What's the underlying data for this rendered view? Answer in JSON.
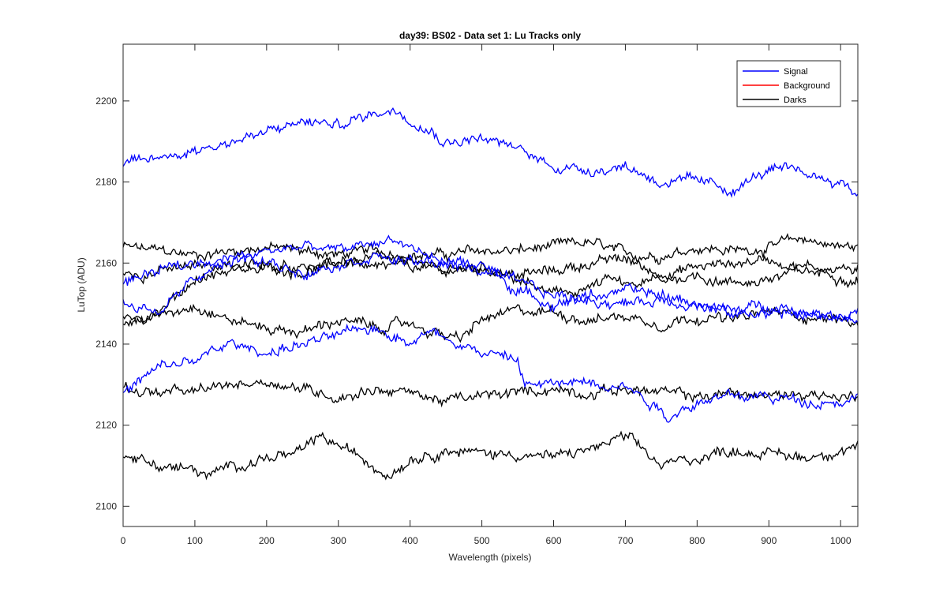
{
  "chart_data": {
    "type": "line",
    "title": "day39: BS02 - Data set 1: Lu Tracks only",
    "xlabel": "Wavelength (pixels)",
    "ylabel": "LuTop (ADU)",
    "xlim": [
      0,
      1024
    ],
    "ylim": [
      2095,
      2214
    ],
    "xticks": [
      0,
      100,
      200,
      300,
      400,
      500,
      600,
      700,
      800,
      900,
      1000
    ],
    "yticks": [
      2100,
      2120,
      2140,
      2160,
      2180,
      2200
    ],
    "grid": false,
    "legend_position": "top-right",
    "legend": [
      {
        "label": "Signal",
        "color": "#0000ff"
      },
      {
        "label": "Background",
        "color": "#ff0000"
      },
      {
        "label": "Darks",
        "color": "#000000"
      }
    ],
    "series": [
      {
        "group": "Signal",
        "color": "#0000ff",
        "x": [
          0,
          50,
          100,
          150,
          200,
          250,
          300,
          350,
          380,
          420,
          450,
          500,
          550,
          600,
          650,
          700,
          750,
          800,
          850,
          900,
          950,
          1000,
          1024
        ],
        "values": [
          2184,
          2186,
          2188,
          2190,
          2192,
          2195,
          2194,
          2197,
          2198,
          2194,
          2190,
          2191,
          2188,
          2184,
          2183,
          2184,
          2180,
          2180,
          2178,
          2183,
          2182,
          2180,
          2177
        ]
      },
      {
        "group": "Signal",
        "color": "#0000ff",
        "x": [
          0,
          50,
          100,
          150,
          200,
          250,
          300,
          350,
          380,
          420,
          450,
          500,
          550,
          600,
          650,
          700,
          750,
          800,
          850,
          900,
          950,
          1000,
          1024
        ],
        "values": [
          2150,
          2148,
          2156,
          2160,
          2163,
          2164,
          2163,
          2165,
          2166,
          2162,
          2160,
          2158,
          2155,
          2152,
          2151,
          2150,
          2151,
          2150,
          2147,
          2148,
          2147,
          2147,
          2146
        ]
      },
      {
        "group": "Signal",
        "color": "#0000ff",
        "x": [
          0,
          50,
          100,
          150,
          200,
          250,
          300,
          350,
          400,
          450,
          500,
          550,
          600,
          650,
          700,
          750,
          800,
          850,
          900,
          950,
          1000,
          1024
        ],
        "values": [
          2155,
          2158,
          2160,
          2162,
          2160,
          2158,
          2160,
          2162,
          2160,
          2160,
          2160,
          2153,
          2150,
          2152,
          2153,
          2152,
          2150,
          2148,
          2150,
          2148,
          2147,
          2148
        ]
      },
      {
        "group": "Signal",
        "color": "#0000ff",
        "x": [
          0,
          50,
          100,
          150,
          200,
          250,
          300,
          350,
          400,
          430,
          450,
          500,
          550,
          560,
          600,
          650,
          700,
          750,
          760,
          800,
          850,
          900,
          950,
          1000,
          1024
        ],
        "values": [
          2128,
          2134,
          2136,
          2140,
          2138,
          2140,
          2142,
          2144,
          2141,
          2143,
          2142,
          2138,
          2136,
          2130,
          2130,
          2131,
          2130,
          2124,
          2122,
          2126,
          2127,
          2127,
          2126,
          2126,
          2127
        ]
      },
      {
        "group": "Darks",
        "color": "#000000",
        "x": [
          0,
          50,
          100,
          150,
          200,
          250,
          300,
          350,
          400,
          450,
          500,
          550,
          600,
          650,
          700,
          750,
          800,
          850,
          900,
          950,
          1000,
          1024
        ],
        "values": [
          2164,
          2163,
          2162,
          2163,
          2164,
          2163,
          2162,
          2163,
          2162,
          2162,
          2163,
          2163,
          2164,
          2165,
          2162,
          2162,
          2164,
          2163,
          2164,
          2166,
          2164,
          2164
        ]
      },
      {
        "group": "Darks",
        "color": "#000000",
        "x": [
          0,
          50,
          100,
          150,
          200,
          250,
          300,
          350,
          400,
          450,
          500,
          550,
          600,
          650,
          700,
          750,
          800,
          850,
          900,
          950,
          1000,
          1024
        ],
        "values": [
          2157,
          2158,
          2159,
          2160,
          2159,
          2158,
          2160,
          2161,
          2159,
          2158,
          2159,
          2157,
          2158,
          2160,
          2161,
          2157,
          2159,
          2160,
          2161,
          2159,
          2159,
          2158
        ]
      },
      {
        "group": "Darks",
        "color": "#000000",
        "x": [
          0,
          50,
          100,
          150,
          200,
          250,
          300,
          350,
          400,
          450,
          500,
          550,
          600,
          650,
          680,
          700,
          750,
          800,
          850,
          900,
          950,
          1000,
          1024
        ],
        "values": [
          2146,
          2148,
          2156,
          2158,
          2159,
          2158,
          2160,
          2160,
          2159,
          2158,
          2158,
          2156,
          2152,
          2154,
          2156,
          2154,
          2156,
          2157,
          2155,
          2156,
          2158,
          2157,
          2156
        ]
      },
      {
        "group": "Darks",
        "color": "#000000",
        "x": [
          0,
          50,
          100,
          150,
          200,
          250,
          300,
          350,
          400,
          450,
          470,
          500,
          550,
          600,
          650,
          700,
          750,
          800,
          850,
          900,
          950,
          1000,
          1024
        ],
        "values": [
          2145,
          2147,
          2150,
          2146,
          2144,
          2143,
          2146,
          2144,
          2145,
          2142,
          2141,
          2146,
          2148,
          2148,
          2146,
          2147,
          2145,
          2147,
          2146,
          2148,
          2147,
          2146,
          2145
        ]
      },
      {
        "group": "Darks",
        "color": "#000000",
        "x": [
          0,
          50,
          100,
          150,
          200,
          250,
          300,
          350,
          400,
          450,
          500,
          550,
          600,
          650,
          700,
          750,
          800,
          850,
          900,
          950,
          1000,
          1024
        ],
        "values": [
          2129,
          2128,
          2128,
          2130,
          2131,
          2129,
          2127,
          2129,
          2128,
          2126,
          2127,
          2128,
          2129,
          2128,
          2129,
          2128,
          2127,
          2128,
          2127,
          2128,
          2127,
          2127
        ]
      },
      {
        "group": "Darks",
        "color": "#000000",
        "x": [
          0,
          50,
          100,
          120,
          150,
          200,
          250,
          270,
          300,
          350,
          370,
          400,
          450,
          500,
          550,
          600,
          650,
          700,
          750,
          800,
          850,
          900,
          950,
          1000,
          1024
        ],
        "values": [
          2113,
          2110,
          2109,
          2107,
          2110,
          2112,
          2113,
          2117,
          2115,
          2110,
          2108,
          2112,
          2114,
          2113,
          2113,
          2112,
          2114,
          2117,
          2110,
          2112,
          2114,
          2113,
          2112,
          2114,
          2115
        ]
      }
    ]
  }
}
